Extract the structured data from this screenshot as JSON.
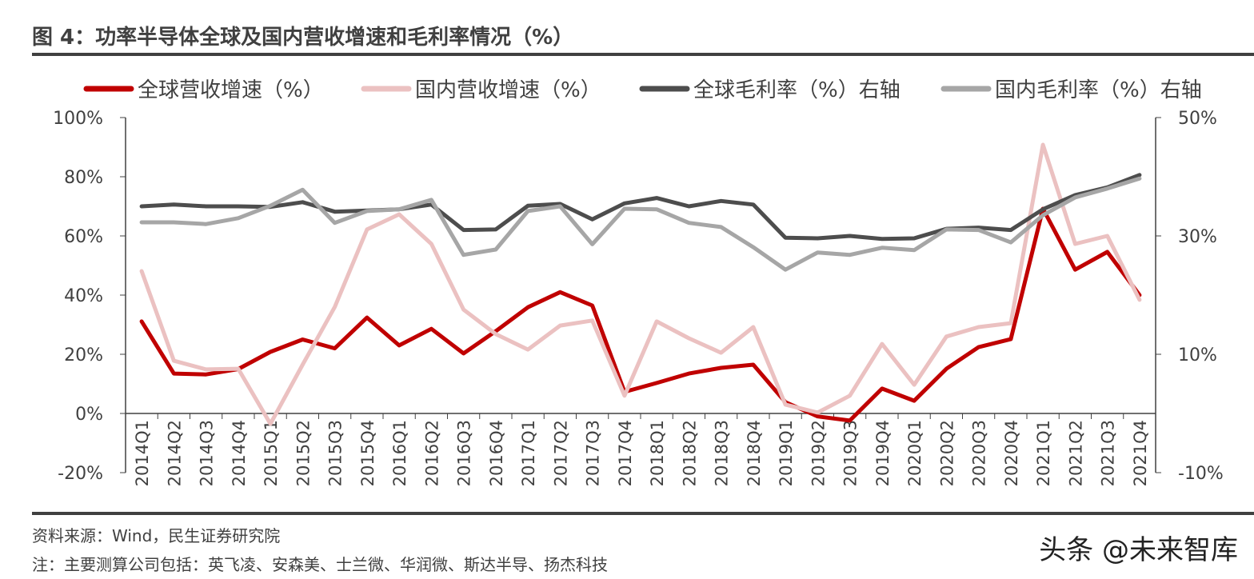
{
  "title": "图 4：功率半导体全球及国内营收增速和毛利率情况（%）",
  "source": "资料来源：Wind，民生证券研究院",
  "note": "注：主要测算公司包括：英飞凌、安森美、士兰微、华润微、斯达半导、扬杰科技",
  "watermark": "头条 @未来智库",
  "chart_data": {
    "type": "line",
    "legend_position": "top",
    "grid": false,
    "categories": [
      "2014Q1",
      "2014Q2",
      "2014Q3",
      "2014Q4",
      "2015Q1",
      "2015Q2",
      "2015Q3",
      "2015Q4",
      "2016Q1",
      "2016Q2",
      "2016Q3",
      "2016Q4",
      "2017Q1",
      "2017Q2",
      "2017Q3",
      "2017Q4",
      "2018Q1",
      "2018Q2",
      "2018Q3",
      "2018Q4",
      "2019Q1",
      "2019Q2",
      "2019Q3",
      "2019Q4",
      "2020Q1",
      "2020Q2",
      "2020Q3",
      "2020Q4",
      "2021Q1",
      "2021Q2",
      "2021Q3",
      "2021Q4"
    ],
    "y_left": {
      "range": [
        -20,
        100
      ],
      "ticks": [
        "-20%",
        "0%",
        "20%",
        "40%",
        "60%",
        "80%",
        "100%"
      ],
      "values": [
        -20,
        0,
        20,
        40,
        60,
        80,
        100
      ]
    },
    "y_right": {
      "range": [
        -10,
        50
      ],
      "ticks": [
        "-10%",
        "10%",
        "30%",
        "50%"
      ],
      "values": [
        -10,
        10,
        30,
        50
      ]
    },
    "series": [
      {
        "name": "全球营收增速（%）",
        "axis": "left",
        "color": "#C00000",
        "values": [
          31.1,
          13.5,
          13.2,
          15,
          20.8,
          25,
          22,
          32.4,
          23,
          28.6,
          20.3,
          27.8,
          35.9,
          41,
          36.5,
          7.3,
          10.3,
          13.5,
          15.4,
          16.5,
          3.8,
          -1,
          -2.4,
          8.4,
          4.3,
          15.1,
          22.4,
          25.1,
          69.2,
          48.6,
          54.6,
          40
        ]
      },
      {
        "name": "国内营收增速（%）",
        "axis": "left",
        "color": "#EBC1C1",
        "values": [
          48.1,
          17.8,
          14.9,
          15.1,
          -3.5,
          16.5,
          36,
          62.2,
          67.3,
          57.3,
          35.1,
          26.8,
          21.6,
          29.7,
          31.4,
          6,
          31.1,
          25.4,
          20.5,
          29.2,
          3,
          0.3,
          6,
          23.5,
          9.7,
          26,
          29.2,
          30.5,
          90.8,
          57.3,
          60,
          38.4
        ]
      },
      {
        "name": "全球毛利率（%）右轴",
        "axis": "right",
        "color": "#4D4D4D",
        "values": [
          35,
          35.3,
          35,
          35,
          34.9,
          35.7,
          34.1,
          34.3,
          34.5,
          35.3,
          31,
          31.1,
          35.1,
          35.4,
          32.8,
          35.5,
          36.4,
          35,
          35.9,
          35.3,
          29.7,
          29.6,
          30,
          29.5,
          29.6,
          31.2,
          31.4,
          31,
          34.5,
          36.9,
          38.2,
          40.3
        ]
      },
      {
        "name": "国内毛利率（%）右轴",
        "axis": "right",
        "color": "#A6A6A6",
        "values": [
          32.3,
          32.3,
          32,
          33,
          35.1,
          37.8,
          32.2,
          34.2,
          34.5,
          36.1,
          26.8,
          27.7,
          34.2,
          35,
          28.6,
          34.6,
          34.5,
          32.2,
          31.5,
          28.1,
          24.3,
          27.2,
          26.8,
          28,
          27.6,
          31.1,
          31,
          28.9,
          33.5,
          36.5,
          38,
          39.7
        ]
      }
    ]
  }
}
